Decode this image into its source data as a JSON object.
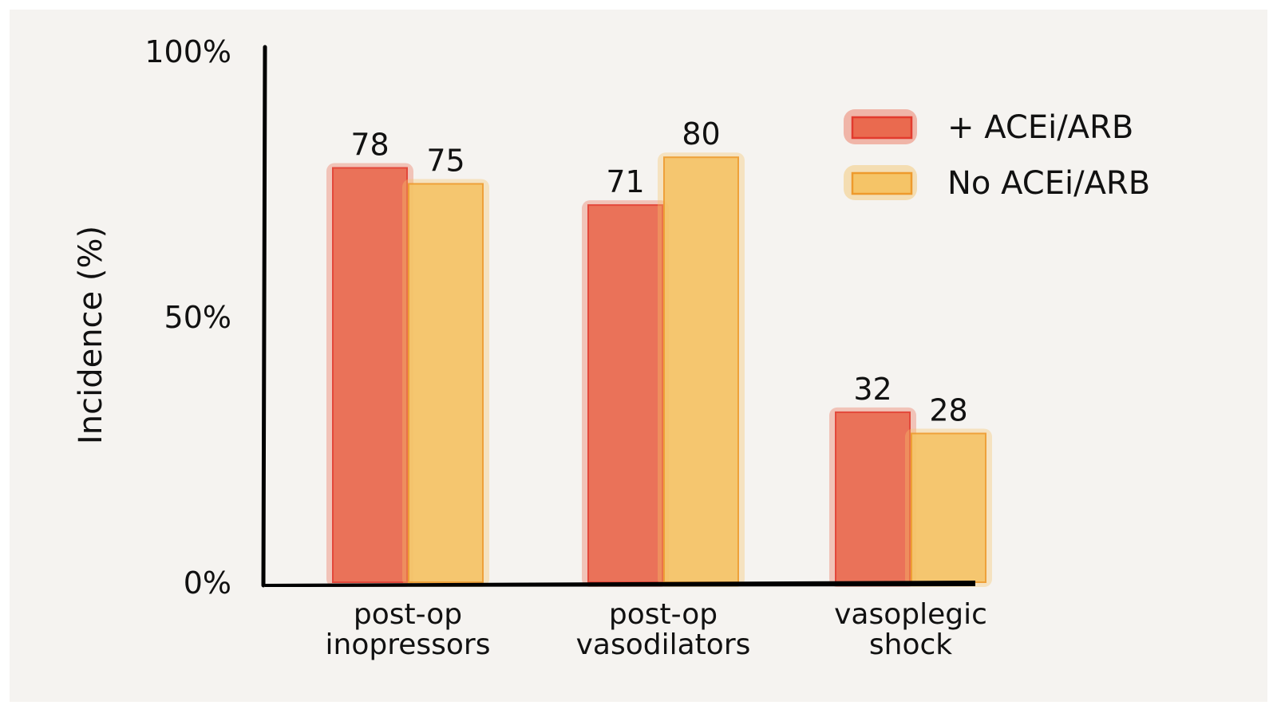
{
  "chart_data": {
    "type": "bar",
    "ylabel": "Incidence (%)",
    "ylim": [
      0,
      100
    ],
    "yticks": [
      "0%",
      "50%",
      "100%"
    ],
    "ytick_values": [
      0,
      50,
      100
    ],
    "categories": [
      [
        "post-op",
        "inopressors"
      ],
      [
        "post-op",
        "vasodilators"
      ],
      [
        "vasoplegic",
        "shock"
      ]
    ],
    "series": [
      {
        "name": "+ ACEi/ARB",
        "values": [
          78,
          71,
          32
        ],
        "fill": "#ea6a4f",
        "stroke": "#e23b2e"
      },
      {
        "name": "No ACEi/ARB",
        "values": [
          75,
          80,
          28
        ],
        "fill": "#f5c467",
        "stroke": "#ee9a2c"
      }
    ],
    "legend": "top-right",
    "grid": false
  }
}
